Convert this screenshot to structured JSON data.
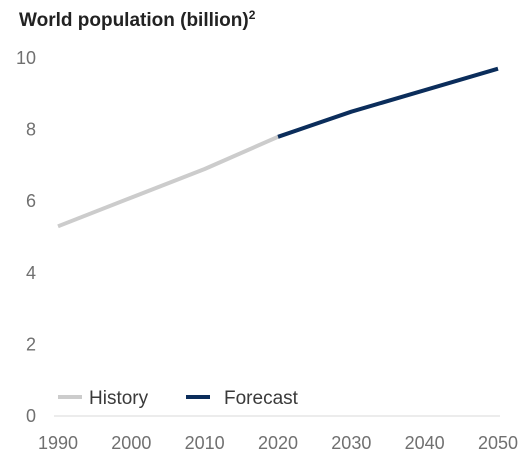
{
  "chart_data": {
    "type": "line",
    "title": "World population (billion)",
    "title_superscript": "2",
    "xlabel": "",
    "ylabel": "",
    "xlim": [
      1990,
      2050
    ],
    "ylim": [
      0,
      10
    ],
    "x_ticks": [
      "1990",
      "2000",
      "2010",
      "2020",
      "2030",
      "2040",
      "2050"
    ],
    "y_ticks": [
      "0",
      "2",
      "4",
      "6",
      "8",
      "10"
    ],
    "grid": false,
    "legend_position": "bottom-left",
    "series": [
      {
        "name": "History",
        "color": "#cccccc",
        "x": [
          1990,
          2000,
          2010,
          2020
        ],
        "y": [
          5.3,
          6.1,
          6.9,
          7.8
        ]
      },
      {
        "name": "Forecast",
        "color": "#0b2d5b",
        "x": [
          2020,
          2030,
          2040,
          2050
        ],
        "y": [
          7.8,
          8.5,
          9.1,
          9.7
        ]
      }
    ]
  }
}
